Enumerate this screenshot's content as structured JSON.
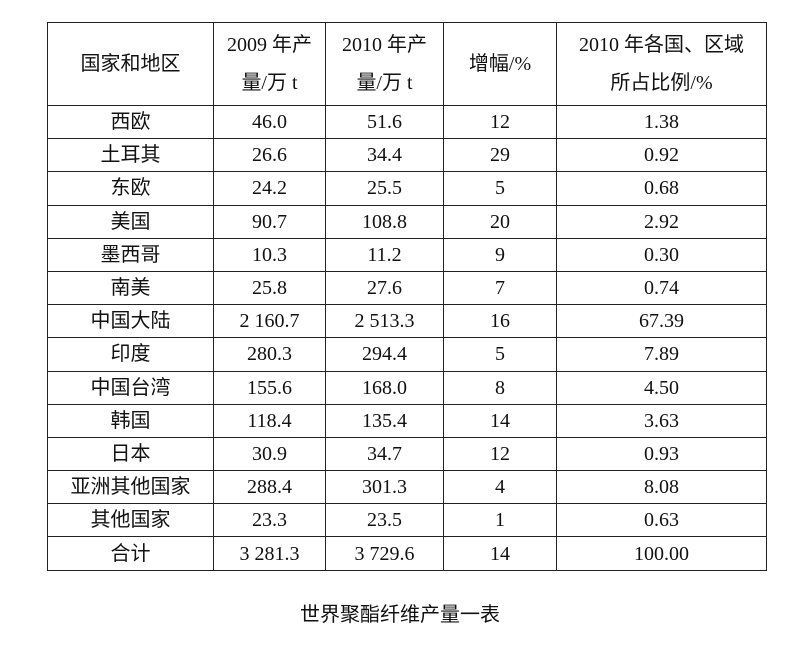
{
  "table": {
    "header": [
      [
        "国家和地区"
      ],
      [
        "2009 年产",
        "量/万 t"
      ],
      [
        "2010 年产",
        "量/万 t"
      ],
      [
        "增幅/%"
      ],
      [
        "2010 年各国、区域",
        "所占比例/%"
      ]
    ],
    "rows": [
      [
        "西欧",
        "46.0",
        "51.6",
        "12",
        "1.38"
      ],
      [
        "土耳其",
        "26.6",
        "34.4",
        "29",
        "0.92"
      ],
      [
        "东欧",
        "24.2",
        "25.5",
        "5",
        "0.68"
      ],
      [
        "美国",
        "90.7",
        "108.8",
        "20",
        "2.92"
      ],
      [
        "墨西哥",
        "10.3",
        "11.2",
        "9",
        "0.30"
      ],
      [
        "南美",
        "25.8",
        "27.6",
        "7",
        "0.74"
      ],
      [
        "中国大陆",
        "2 160.7",
        "2 513.3",
        "16",
        "67.39"
      ],
      [
        "印度",
        "280.3",
        "294.4",
        "5",
        "7.89"
      ],
      [
        "中国台湾",
        "155.6",
        "168.0",
        "8",
        "4.50"
      ],
      [
        "韩国",
        "118.4",
        "135.4",
        "14",
        "3.63"
      ],
      [
        "日本",
        "30.9",
        "34.7",
        "12",
        "0.93"
      ],
      [
        "亚洲其他国家",
        "288.4",
        "301.3",
        "4",
        "8.08"
      ],
      [
        "其他国家",
        "23.3",
        "23.5",
        "1",
        "0.63"
      ],
      [
        "合计",
        "3 281.3",
        "3 729.6",
        "14",
        "100.00"
      ]
    ]
  },
  "caption": "世界聚酯纤维产量一表"
}
